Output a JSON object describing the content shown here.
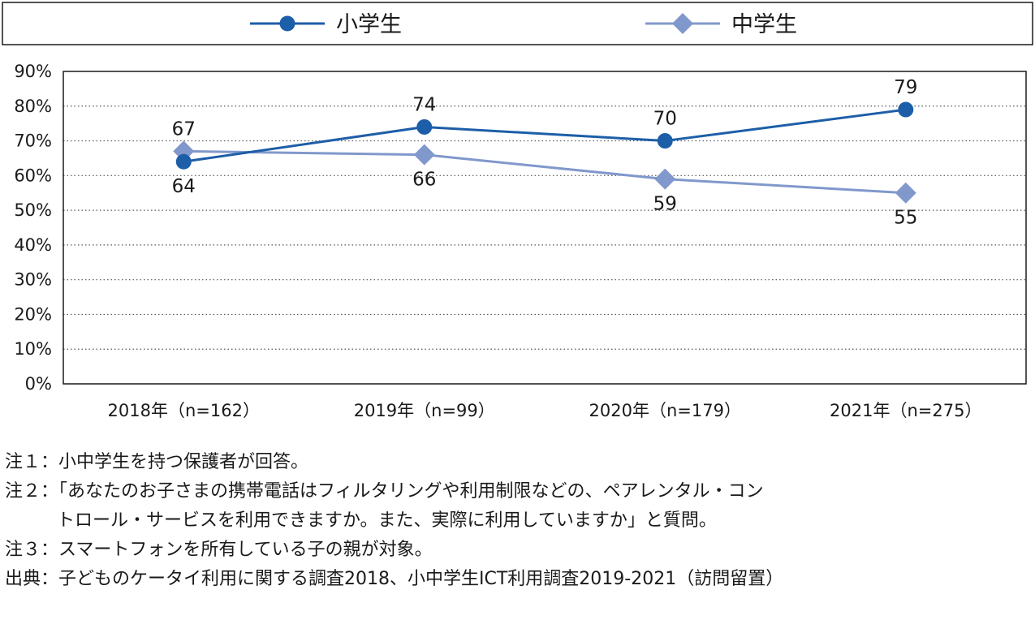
{
  "chart_data": {
    "type": "line",
    "categories": [
      "2018年（n=162）",
      "2019年（n=99）",
      "2020年（n=179）",
      "2021年（n=275）"
    ],
    "y_ticks": [
      "0%",
      "10%",
      "20%",
      "30%",
      "40%",
      "50%",
      "60%",
      "70%",
      "80%",
      "90%"
    ],
    "ylim": [
      0,
      90
    ],
    "grid": "horizontal dotted",
    "legend_position": "top",
    "series": [
      {
        "name": "小学生",
        "values": [
          64,
          74,
          70,
          79
        ],
        "labels": [
          "64",
          "74",
          "70",
          "79"
        ],
        "label_position": [
          "below",
          "above",
          "above",
          "above"
        ],
        "marker": "circle",
        "color": "#1d5ea8"
      },
      {
        "name": "中学生",
        "values": [
          67,
          66,
          59,
          55
        ],
        "labels": [
          "67",
          "66",
          "59",
          "55"
        ],
        "label_position": [
          "above",
          "below",
          "below",
          "below"
        ],
        "marker": "diamond",
        "color": "#8198cc"
      }
    ]
  },
  "notes": [
    "注１：小中学生を持つ保護者が回答。",
    "注２：「あなたのお子さまの携帯電話はフィルタリングや利用制限などの、ペアレンタル・コン",
    "トロール・サービスを利用できますか。また、実際に利用していますか」と質問。",
    "注３：スマートフォンを所有している子の親が対象。",
    "出典：子どものケータイ利用に関する調査2018、小中学生ICT利用調査2019-2021（訪問留置）"
  ]
}
